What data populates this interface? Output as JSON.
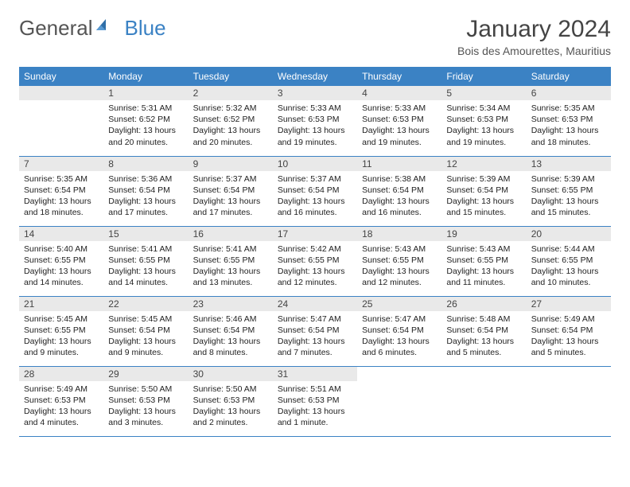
{
  "logo": {
    "part1": "General",
    "part2": "Blue"
  },
  "title": "January 2024",
  "location": "Bois des Amourettes, Mauritius",
  "colors": {
    "header_bg": "#3b82c4",
    "header_text": "#ffffff",
    "daynum_bg": "#e9e9e9",
    "border": "#3b82c4"
  },
  "weekdays": [
    "Sunday",
    "Monday",
    "Tuesday",
    "Wednesday",
    "Thursday",
    "Friday",
    "Saturday"
  ],
  "weeks": [
    [
      null,
      {
        "n": "1",
        "sr": "5:31 AM",
        "ss": "6:52 PM",
        "dl": "13 hours and 20 minutes."
      },
      {
        "n": "2",
        "sr": "5:32 AM",
        "ss": "6:52 PM",
        "dl": "13 hours and 20 minutes."
      },
      {
        "n": "3",
        "sr": "5:33 AM",
        "ss": "6:53 PM",
        "dl": "13 hours and 19 minutes."
      },
      {
        "n": "4",
        "sr": "5:33 AM",
        "ss": "6:53 PM",
        "dl": "13 hours and 19 minutes."
      },
      {
        "n": "5",
        "sr": "5:34 AM",
        "ss": "6:53 PM",
        "dl": "13 hours and 19 minutes."
      },
      {
        "n": "6",
        "sr": "5:35 AM",
        "ss": "6:53 PM",
        "dl": "13 hours and 18 minutes."
      }
    ],
    [
      {
        "n": "7",
        "sr": "5:35 AM",
        "ss": "6:54 PM",
        "dl": "13 hours and 18 minutes."
      },
      {
        "n": "8",
        "sr": "5:36 AM",
        "ss": "6:54 PM",
        "dl": "13 hours and 17 minutes."
      },
      {
        "n": "9",
        "sr": "5:37 AM",
        "ss": "6:54 PM",
        "dl": "13 hours and 17 minutes."
      },
      {
        "n": "10",
        "sr": "5:37 AM",
        "ss": "6:54 PM",
        "dl": "13 hours and 16 minutes."
      },
      {
        "n": "11",
        "sr": "5:38 AM",
        "ss": "6:54 PM",
        "dl": "13 hours and 16 minutes."
      },
      {
        "n": "12",
        "sr": "5:39 AM",
        "ss": "6:54 PM",
        "dl": "13 hours and 15 minutes."
      },
      {
        "n": "13",
        "sr": "5:39 AM",
        "ss": "6:55 PM",
        "dl": "13 hours and 15 minutes."
      }
    ],
    [
      {
        "n": "14",
        "sr": "5:40 AM",
        "ss": "6:55 PM",
        "dl": "13 hours and 14 minutes."
      },
      {
        "n": "15",
        "sr": "5:41 AM",
        "ss": "6:55 PM",
        "dl": "13 hours and 14 minutes."
      },
      {
        "n": "16",
        "sr": "5:41 AM",
        "ss": "6:55 PM",
        "dl": "13 hours and 13 minutes."
      },
      {
        "n": "17",
        "sr": "5:42 AM",
        "ss": "6:55 PM",
        "dl": "13 hours and 12 minutes."
      },
      {
        "n": "18",
        "sr": "5:43 AM",
        "ss": "6:55 PM",
        "dl": "13 hours and 12 minutes."
      },
      {
        "n": "19",
        "sr": "5:43 AM",
        "ss": "6:55 PM",
        "dl": "13 hours and 11 minutes."
      },
      {
        "n": "20",
        "sr": "5:44 AM",
        "ss": "6:55 PM",
        "dl": "13 hours and 10 minutes."
      }
    ],
    [
      {
        "n": "21",
        "sr": "5:45 AM",
        "ss": "6:55 PM",
        "dl": "13 hours and 9 minutes."
      },
      {
        "n": "22",
        "sr": "5:45 AM",
        "ss": "6:54 PM",
        "dl": "13 hours and 9 minutes."
      },
      {
        "n": "23",
        "sr": "5:46 AM",
        "ss": "6:54 PM",
        "dl": "13 hours and 8 minutes."
      },
      {
        "n": "24",
        "sr": "5:47 AM",
        "ss": "6:54 PM",
        "dl": "13 hours and 7 minutes."
      },
      {
        "n": "25",
        "sr": "5:47 AM",
        "ss": "6:54 PM",
        "dl": "13 hours and 6 minutes."
      },
      {
        "n": "26",
        "sr": "5:48 AM",
        "ss": "6:54 PM",
        "dl": "13 hours and 5 minutes."
      },
      {
        "n": "27",
        "sr": "5:49 AM",
        "ss": "6:54 PM",
        "dl": "13 hours and 5 minutes."
      }
    ],
    [
      {
        "n": "28",
        "sr": "5:49 AM",
        "ss": "6:53 PM",
        "dl": "13 hours and 4 minutes."
      },
      {
        "n": "29",
        "sr": "5:50 AM",
        "ss": "6:53 PM",
        "dl": "13 hours and 3 minutes."
      },
      {
        "n": "30",
        "sr": "5:50 AM",
        "ss": "6:53 PM",
        "dl": "13 hours and 2 minutes."
      },
      {
        "n": "31",
        "sr": "5:51 AM",
        "ss": "6:53 PM",
        "dl": "13 hours and 1 minute."
      },
      null,
      null,
      null
    ]
  ],
  "labels": {
    "sunrise": "Sunrise: ",
    "sunset": "Sunset: ",
    "daylight": "Daylight: "
  }
}
